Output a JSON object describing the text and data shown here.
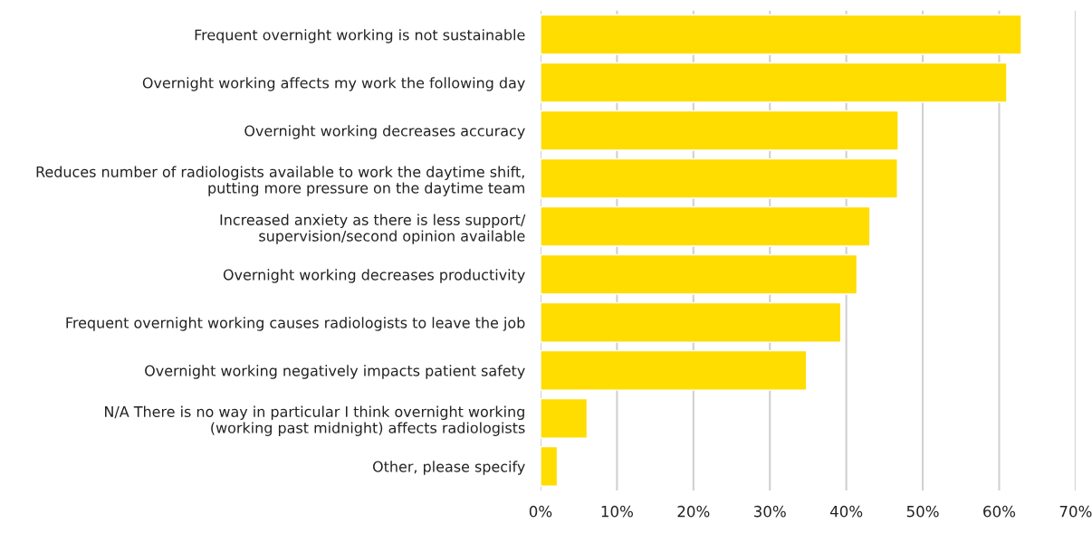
{
  "chart_data": {
    "type": "bar",
    "orientation": "horizontal",
    "categories": [
      "Frequent overnight working is not sustainable",
      "Overnight working affects my work the following day",
      "Overnight working decreases accuracy",
      "Reduces number of radiologists available to work the daytime shift,\nputting more pressure on the daytime team",
      "Increased anxiety as there is less support/\nsupervision/second opinion available",
      "Overnight working decreases productivity",
      "Frequent overnight working causes radiologists to leave the job",
      "Overnight working negatively impacts patient safety",
      "N/A There is no way in particular I think overnight working\n(working past midnight) affects radiologists",
      "Other, please specify"
    ],
    "values": [
      62.9,
      61.0,
      46.8,
      46.7,
      43.1,
      41.4,
      39.3,
      34.8,
      6.1,
      2.2
    ],
    "color": "#ffdd00",
    "xlim": [
      0,
      70
    ],
    "xticks": [
      {
        "value": 0,
        "label": "0%"
      },
      {
        "value": 10,
        "label": "10%"
      },
      {
        "value": 20,
        "label": "20%"
      },
      {
        "value": 30,
        "label": "30%"
      },
      {
        "value": 40,
        "label": "40%"
      },
      {
        "value": 50,
        "label": "50%"
      },
      {
        "value": 60,
        "label": "60%"
      },
      {
        "value": 70,
        "label": "70%"
      }
    ],
    "grid": "x"
  }
}
